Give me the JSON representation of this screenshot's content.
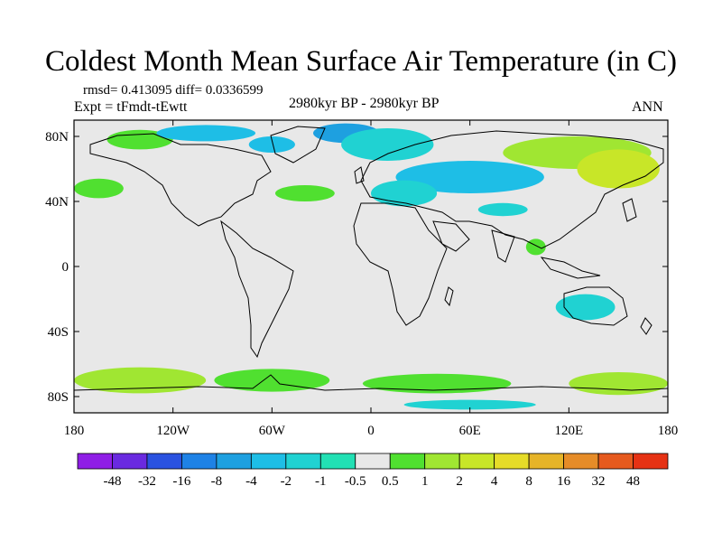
{
  "title": "Coldest Month Mean Surface Air Temperature (in C)",
  "stats": "rmsd= 0.413095 diff= 0.0336599",
  "experiment": "Expt = tFmdt-tEwtt",
  "period": "2980kyr BP - 2980kyr BP",
  "season": "ANN",
  "map": {
    "projection": "cylindrical-equidistant",
    "lon_range": [
      -180,
      180
    ],
    "lat_range": [
      -90,
      90
    ],
    "lat_labels": [
      {
        "lat": 80,
        "text": "80N"
      },
      {
        "lat": 40,
        "text": "40N"
      },
      {
        "lat": 0,
        "text": "0"
      },
      {
        "lat": -40,
        "text": "40S"
      },
      {
        "lat": -80,
        "text": "80S"
      }
    ],
    "lon_labels": [
      {
        "lon": -180,
        "text": "180"
      },
      {
        "lon": -120,
        "text": "120W"
      },
      {
        "lon": -60,
        "text": "60W"
      },
      {
        "lon": 0,
        "text": "0"
      },
      {
        "lon": 60,
        "text": "60E"
      },
      {
        "lon": 120,
        "text": "120E"
      },
      {
        "lon": 180,
        "text": "180"
      }
    ],
    "background_color": "#e8e8e8",
    "coastline_color": "#000000"
  },
  "colorbar": {
    "colors": [
      "#8f1ee6",
      "#6a2ae0",
      "#2a52e0",
      "#1e82e6",
      "#1ea0e0",
      "#1ebee6",
      "#20d2d2",
      "#22e0b4",
      "#e8e8e8",
      "#50e030",
      "#a0e632",
      "#c8e628",
      "#e6dc28",
      "#e6b428",
      "#e68c28",
      "#e65a1e",
      "#e63214"
    ],
    "labels": [
      "-48",
      "-32",
      "-16",
      "-8",
      "-4",
      "-2",
      "-1",
      "-0.5",
      "0.5",
      "1",
      "2",
      "4",
      "8",
      "16",
      "32",
      "48"
    ]
  },
  "anomaly_patches": [
    {
      "lon": -140,
      "lat": 78,
      "rx": 20,
      "ry": 6,
      "color": "#50e030"
    },
    {
      "lon": -100,
      "lat": 82,
      "rx": 30,
      "ry": 5,
      "color": "#1ebee6"
    },
    {
      "lon": -60,
      "lat": 75,
      "rx": 14,
      "ry": 5,
      "color": "#1ebee6"
    },
    {
      "lon": -15,
      "lat": 82,
      "rx": 20,
      "ry": 6,
      "color": "#1ea0e0"
    },
    {
      "lon": 10,
      "lat": 75,
      "rx": 28,
      "ry": 10,
      "color": "#20d2d2"
    },
    {
      "lon": 60,
      "lat": 55,
      "rx": 45,
      "ry": 10,
      "color": "#1ebee6"
    },
    {
      "lon": 20,
      "lat": 45,
      "rx": 20,
      "ry": 8,
      "color": "#20d2d2"
    },
    {
      "lon": 125,
      "lat": 70,
      "rx": 45,
      "ry": 10,
      "color": "#a0e632"
    },
    {
      "lon": 150,
      "lat": 60,
      "rx": 25,
      "ry": 12,
      "color": "#c8e628"
    },
    {
      "lon": -165,
      "lat": 48,
      "rx": 15,
      "ry": 6,
      "color": "#50e030"
    },
    {
      "lon": -40,
      "lat": 45,
      "rx": 18,
      "ry": 5,
      "color": "#50e030"
    },
    {
      "lon": 80,
      "lat": 35,
      "rx": 15,
      "ry": 4,
      "color": "#20d2d2"
    },
    {
      "lon": 100,
      "lat": 12,
      "rx": 6,
      "ry": 5,
      "color": "#50e030"
    },
    {
      "lon": 130,
      "lat": -25,
      "rx": 18,
      "ry": 8,
      "color": "#20d2d2"
    },
    {
      "lon": -140,
      "lat": -70,
      "rx": 40,
      "ry": 8,
      "color": "#a0e632"
    },
    {
      "lon": -60,
      "lat": -70,
      "rx": 35,
      "ry": 7,
      "color": "#50e030"
    },
    {
      "lon": 40,
      "lat": -72,
      "rx": 45,
      "ry": 6,
      "color": "#50e030"
    },
    {
      "lon": 150,
      "lat": -72,
      "rx": 30,
      "ry": 7,
      "color": "#a0e632"
    },
    {
      "lon": 60,
      "lat": -85,
      "rx": 40,
      "ry": 3,
      "color": "#20d2d2"
    }
  ]
}
